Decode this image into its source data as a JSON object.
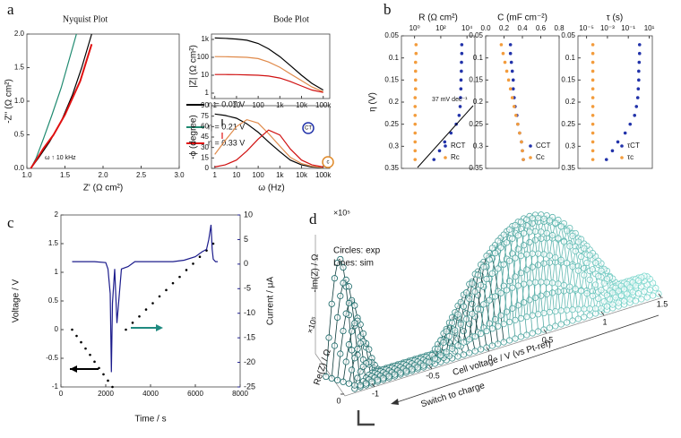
{
  "panel_labels": [
    "a",
    "b",
    "c",
    "d"
  ],
  "chart_data": [
    {
      "type": "line",
      "title": "Nyquist Plot",
      "xlabel": "Z' (Ω cm²)",
      "ylabel": "-Z'' (Ω cm²)",
      "xlim": [
        1,
        3
      ],
      "xticks": [
        {
          "value": 1,
          "label": "1.0"
        },
        1.5,
        {
          "value": 2,
          "label": "2.0"
        },
        2.5,
        {
          "value": 3,
          "label": "3.0"
        }
      ],
      "ylim": [
        0,
        2
      ],
      "yticks": [
        {
          "value": 0,
          "label": "0.0"
        },
        0.5,
        {
          "value": 1,
          "label": "1.0"
        },
        1.5,
        {
          "value": 2,
          "label": "2.0"
        }
      ],
      "series": [
        {
          "name": "η = 0.07 V",
          "color": "#000000",
          "x": [
            1.05,
            1.15,
            1.3,
            1.45,
            1.6,
            1.72,
            1.85
          ],
          "values": [
            0,
            0.15,
            0.4,
            0.7,
            1.1,
            1.5,
            2.0
          ]
        },
        {
          "name": "η = 0.21 V",
          "color": "#1f8a70",
          "x": [
            1.05,
            1.12,
            1.22,
            1.33,
            1.45,
            1.55,
            1.65
          ],
          "values": [
            0,
            0.15,
            0.45,
            0.8,
            1.2,
            1.6,
            2.0
          ]
        },
        {
          "name": "η = 0.33 V",
          "color": "#e01010",
          "x": [
            1.05,
            1.12,
            1.22,
            1.35,
            1.5,
            1.7,
            1.85
          ],
          "values": [
            0,
            0.12,
            0.3,
            0.5,
            0.8,
            1.3,
            1.85
          ]
        }
      ],
      "annotations": [
        "ω ↑ 10 kHz"
      ]
    },
    {
      "type": "line",
      "title": "Bode Plot",
      "ylabel": "|Z| (Ω cm²)",
      "xlog": true,
      "ylog": true,
      "xlim": [
        0.7,
        200000
      ],
      "xticks": [
        1,
        10,
        100,
        {
          "value": 1000,
          "label": "1k"
        },
        {
          "value": 10000,
          "label": "10k"
        },
        {
          "value": 100000,
          "label": "100k"
        }
      ],
      "ylim": [
        0.5,
        2000
      ],
      "yticks": [
        1,
        10,
        100,
        {
          "value": 1000,
          "label": "1k"
        }
      ],
      "x": [
        1,
        3,
        10,
        30,
        100,
        300,
        1000,
        3000,
        10000,
        30000,
        100000
      ],
      "series": [
        {
          "color": "#000000",
          "values": [
            1200,
            1150,
            1050,
            900,
            600,
            300,
            110,
            35,
            10,
            3.5,
            1.5
          ]
        },
        {
          "color": "#e08a4a",
          "values": [
            110,
            108,
            105,
            100,
            85,
            55,
            28,
            12,
            5,
            2.2,
            1.2
          ]
        },
        {
          "color": "#d01010",
          "values": [
            11,
            11,
            10.8,
            10.5,
            10,
            9,
            7,
            4.5,
            2.5,
            1.5,
            1.1
          ]
        }
      ]
    },
    {
      "type": "line",
      "ylabel": "-ϕ (degree)",
      "xlabel": "ω (Hz)",
      "xlog": true,
      "xlim": [
        0.7,
        200000
      ],
      "xticks": [
        1,
        10,
        100,
        {
          "value": 1000,
          "label": "1k"
        },
        {
          "value": 10000,
          "label": "10k"
        },
        {
          "value": 100000,
          "label": "100k"
        }
      ],
      "ylim": [
        0,
        90
      ],
      "yticks": [
        0,
        15,
        30,
        45,
        60,
        75,
        90
      ],
      "x": [
        1,
        3,
        10,
        30,
        100,
        300,
        1000,
        3000,
        10000,
        30000,
        100000
      ],
      "series": [
        {
          "color": "#000000",
          "values": [
            78,
            76,
            72,
            64,
            52,
            38,
            24,
            12,
            5,
            2,
            1
          ]
        },
        {
          "color": "#e08a4a",
          "values": [
            20,
            40,
            60,
            70,
            65,
            50,
            32,
            16,
            7,
            3,
            1
          ]
        },
        {
          "color": "#d01010",
          "values": [
            2,
            5,
            12,
            25,
            42,
            55,
            48,
            28,
            12,
            5,
            2
          ]
        }
      ],
      "annotations": [
        "CT",
        "c"
      ]
    },
    {
      "type": "scatter",
      "orientation": "horizontal",
      "title": "R (Ω cm²)",
      "ylabel": "η (V)",
      "xlog": true,
      "xlim": [
        0.1,
        40000
      ],
      "xticks": [
        {
          "value": 1,
          "label": "10⁰"
        },
        {
          "value": 100,
          "label": "10²"
        },
        {
          "value": 10000,
          "label": "10⁴"
        }
      ],
      "ylim": [
        0.35,
        0.05
      ],
      "yticks": [
        0.05,
        0.1,
        0.15,
        0.2,
        0.25,
        0.3,
        0.35
      ],
      "y": [
        0.07,
        0.09,
        0.11,
        0.13,
        0.15,
        0.17,
        0.19,
        0.21,
        0.23,
        0.25,
        0.27,
        0.29,
        0.31,
        0.33
      ],
      "series": [
        {
          "name": "RCT",
          "color": "#2233aa",
          "values": [
            4000,
            4000,
            3800,
            3700,
            3500,
            3400,
            3200,
            3000,
            2500,
            1500,
            600,
            200,
            80,
            30
          ]
        },
        {
          "name": "Rc",
          "color": "#f39c3c",
          "values": [
            1.3,
            1.3,
            1.2,
            1.2,
            1.2,
            1.2,
            1.1,
            1.1,
            1.1,
            1.1,
            1.1,
            1.1,
            1.1,
            1.1
          ]
        }
      ],
      "annotations": [
        "37 mV dec⁻¹"
      ]
    },
    {
      "type": "scatter",
      "orientation": "horizontal",
      "title": "C (mF cm⁻²)",
      "xlim": [
        0,
        0.8
      ],
      "xticks": [
        {
          "value": 0,
          "label": "0.0"
        },
        0.2,
        0.4,
        0.6,
        0.8
      ],
      "ylim": [
        0.35,
        0.05
      ],
      "yticks": [
        0.05,
        0.1,
        0.15,
        0.2,
        0.25,
        0.3,
        0.35
      ],
      "y": [
        0.07,
        0.09,
        0.11,
        0.13,
        0.15,
        0.17,
        0.19,
        0.21,
        0.23,
        0.25,
        0.27,
        0.29,
        0.31,
        0.33
      ],
      "series": [
        {
          "name": "CCT",
          "color": "#2233aa",
          "values": [
            0.27,
            0.27,
            0.28,
            0.29,
            0.3,
            0.3,
            0.31,
            0.32,
            0.34,
            0.35,
            0.37,
            0.39,
            0.4,
            0.41
          ]
        },
        {
          "name": "Cc",
          "color": "#f39c3c",
          "values": [
            0.17,
            0.19,
            0.21,
            0.23,
            0.25,
            0.27,
            0.29,
            0.31,
            0.33,
            0.35,
            0.37,
            0.39,
            0.4,
            0.41
          ]
        }
      ]
    },
    {
      "type": "scatter",
      "orientation": "horizontal",
      "title": "τ (s)",
      "xlog": true,
      "xlim": [
        1.5e-06,
        20
      ],
      "xticks": [
        {
          "value": 1e-05,
          "label": "10⁻⁵"
        },
        {
          "value": 0.001,
          "label": "10⁻³"
        },
        {
          "value": 0.1,
          "label": "10⁻¹"
        },
        {
          "value": 10,
          "label": "10¹"
        }
      ],
      "ylim": [
        0.35,
        0.05
      ],
      "yticks": [
        0.05,
        0.1,
        0.15,
        0.2,
        0.25,
        0.3,
        0.35
      ],
      "y": [
        0.07,
        0.09,
        0.11,
        0.13,
        0.15,
        0.17,
        0.19,
        0.21,
        0.23,
        0.25,
        0.27,
        0.29,
        0.31,
        0.33
      ],
      "series": [
        {
          "name": "τCT",
          "color": "#2233aa",
          "values": [
            1.2,
            1.2,
            1.1,
            1,
            1,
            0.9,
            0.8,
            0.6,
            0.4,
            0.15,
            0.05,
            0.01,
            0.003,
            0.0008
          ]
        },
        {
          "name": "τc",
          "color": "#f39c3c",
          "values": [
            4e-05,
            4e-05,
            4e-05,
            4e-05,
            4e-05,
            4e-05,
            4e-05,
            4e-05,
            4e-05,
            4e-05,
            4e-05,
            4e-05,
            4e-05,
            4e-05
          ]
        }
      ]
    },
    {
      "type": "line",
      "xlabel": "Time / s",
      "ylabel": "Voltage / V",
      "y2label": "Current / μA",
      "y2color": "#1c1c8c",
      "xlim": [
        0,
        8000
      ],
      "xticks": [
        0,
        2000,
        4000,
        6000,
        8000
      ],
      "ylim": [
        -1,
        2
      ],
      "yticks": [
        -1,
        -0.5,
        0,
        0.5,
        1,
        1.5,
        2
      ],
      "y2lim": [
        -25,
        10
      ],
      "y2ticks": [
        -25,
        -20,
        -15,
        -10,
        -5,
        0,
        5,
        10
      ],
      "series": [
        {
          "color": "#000000",
          "style": "dots",
          "x": [
            500,
            700,
            900,
            1100,
            1300,
            1500,
            1700,
            1900,
            2100,
            2300
          ],
          "values": [
            0,
            -0.11,
            -0.22,
            -0.33,
            -0.44,
            -0.56,
            -0.67,
            -0.78,
            -0.89,
            -1
          ]
        },
        {
          "color": "#000000",
          "style": "dots",
          "x": [
            2900,
            3200,
            3500,
            3800,
            4100,
            4400,
            4700,
            5000,
            5300,
            5600,
            5900,
            6200,
            6500,
            6800
          ],
          "values": [
            0,
            0.12,
            0.23,
            0.35,
            0.46,
            0.58,
            0.69,
            0.81,
            0.92,
            1.04,
            1.15,
            1.27,
            1.38,
            1.5
          ]
        },
        {
          "color": "#1c1c8c",
          "axis": "y2",
          "x": [
            500,
            1000,
            1500,
            2000,
            2100,
            2200,
            2250,
            2300,
            2400,
            2500,
            2700,
            3000,
            3300,
            4000,
            5000,
            5500,
            6000,
            6300,
            6500,
            6600,
            6700,
            6750,
            6800,
            6900,
            7000
          ],
          "values": [
            0.5,
            0.5,
            0.5,
            0.3,
            -1,
            -6,
            -22,
            -8,
            -1,
            -12,
            -1,
            -0.5,
            0.5,
            0.5,
            0.5,
            0.8,
            1.5,
            2.5,
            3,
            5,
            8,
            3,
            1,
            0.5,
            0.5
          ]
        }
      ]
    },
    {
      "type": "3d",
      "xlabel": "Cell voltage / V (vs Pt-ref)",
      "ylabel": "Re(Z) / Ω",
      "zlabel": "-Im(Z) / Ω",
      "zscale": "×10⁵",
      "yscale": "×10⁵",
      "xticks": [
        -1,
        -0.5,
        0,
        0.5,
        1,
        1.5
      ],
      "yticks": [
        0
      ],
      "annotations": [
        "Circles: exp",
        "Lines: sim",
        "Switch to charge"
      ]
    }
  ]
}
